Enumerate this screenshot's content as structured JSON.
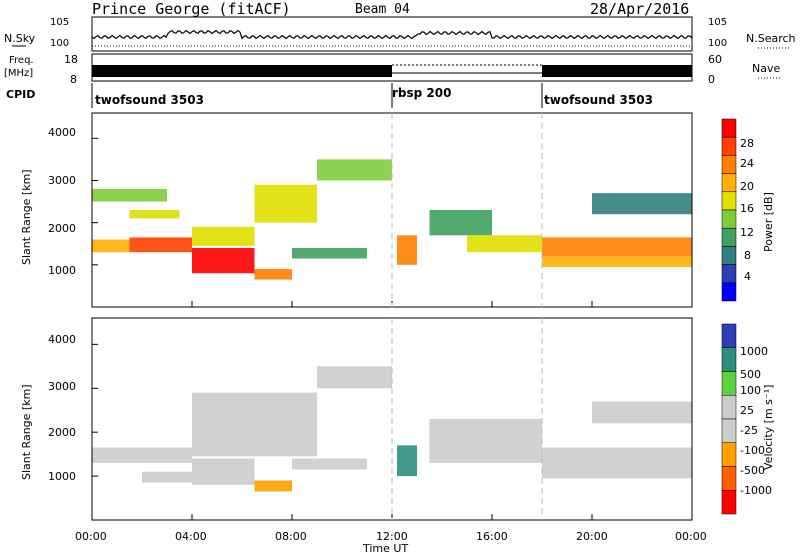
{
  "header": {
    "station": "Prince George (fitACF)",
    "beam": "Beam 04",
    "date": "28/Apr/2016"
  },
  "side_labels": {
    "nsky": "N.Sky",
    "freq_line1": "Freq.",
    "freq_line2": "[MHz]",
    "cpid": "CPID",
    "nsearch": "N.Search",
    "nave": "Nave"
  },
  "cpid_segments": [
    {
      "label": "twofsound 3503",
      "start_hour": 0
    },
    {
      "label": "rbsp 200",
      "start_hour": 12
    },
    {
      "label": "twofsound 3503",
      "start_hour": 18
    }
  ],
  "noise_panel": {
    "left_ticks": [
      "10^5",
      "10^0"
    ],
    "right_ticks": [
      "10^5",
      "10^0"
    ]
  },
  "freq_panel": {
    "left_ticks": [
      "18",
      "8"
    ],
    "right_ticks": [
      "60",
      "0"
    ]
  },
  "chart_data": [
    {
      "type": "heatmap",
      "title": "Power",
      "ylabel": "Slant Range [km]",
      "xlabel": "",
      "x_range": [
        0,
        24
      ],
      "ylim": [
        0,
        4600
      ],
      "yticks": [
        "4000",
        "3000",
        "2000",
        "1000"
      ],
      "colorbar": {
        "label": "Power [dB]",
        "range": [
          0,
          32
        ],
        "ticks": [
          "28",
          "24",
          "20",
          "16",
          "12",
          "8",
          "4"
        ],
        "colors": [
          "#0000ff",
          "#2e3fb5",
          "#2e7f7f",
          "#40a060",
          "#7fcc3f",
          "#dfdf00",
          "#ffb000",
          "#ff8000",
          "#ff4000",
          "#ff0000"
        ]
      },
      "bands": [
        {
          "t0": 0,
          "t1": 1.5,
          "r0": 1300,
          "r1": 1600,
          "value": 22
        },
        {
          "t0": 1.5,
          "t1": 4,
          "r0": 1300,
          "r1": 1650,
          "value": 26
        },
        {
          "t0": 4,
          "t1": 6.5,
          "r0": 1450,
          "r1": 1900,
          "value": 18
        },
        {
          "t0": 6.5,
          "t1": 9,
          "r0": 2000,
          "r1": 2900,
          "value": 16
        },
        {
          "t0": 9,
          "t1": 12,
          "r0": 3000,
          "r1": 3500,
          "value": 14
        },
        {
          "t0": 4,
          "t1": 6.5,
          "r0": 800,
          "r1": 1400,
          "value": 30
        },
        {
          "t0": 6.5,
          "t1": 8,
          "r0": 650,
          "r1": 900,
          "value": 24
        },
        {
          "t0": 8,
          "t1": 11,
          "r0": 1150,
          "r1": 1400,
          "value": 12
        },
        {
          "t0": 0,
          "t1": 3,
          "r0": 2500,
          "r1": 2800,
          "value": 14
        },
        {
          "t0": 1.5,
          "t1": 3.5,
          "r0": 2100,
          "r1": 2300,
          "value": 18
        },
        {
          "t0": 12.2,
          "t1": 13,
          "r0": 1000,
          "r1": 1700,
          "value": 24
        },
        {
          "t0": 13.5,
          "t1": 16,
          "r0": 1700,
          "r1": 2300,
          "value": 12
        },
        {
          "t0": 15,
          "t1": 18,
          "r0": 1300,
          "r1": 1700,
          "value": 18
        },
        {
          "t0": 18,
          "t1": 24,
          "r0": 1200,
          "r1": 1650,
          "value": 24
        },
        {
          "t0": 18,
          "t1": 24,
          "r0": 950,
          "r1": 1200,
          "value": 20
        },
        {
          "t0": 20,
          "t1": 24,
          "r0": 2200,
          "r1": 2700,
          "value": 8
        }
      ]
    },
    {
      "type": "heatmap",
      "title": "Velocity",
      "ylabel": "Slant Range [km]",
      "xlabel": "Time UT",
      "x_range": [
        0,
        24
      ],
      "xticks": [
        "00:00",
        "04:00",
        "08:00",
        "12:00",
        "16:00",
        "20:00",
        "00:00"
      ],
      "ylim": [
        0,
        4600
      ],
      "yticks": [
        "4000",
        "3000",
        "2000",
        "1000"
      ],
      "colorbar": {
        "label": "Velocity [m s^-1]",
        "range": [
          -1200,
          1200
        ],
        "ticks": [
          "1000",
          "500",
          "100",
          "25",
          "-25",
          "-100",
          "-500",
          "-1000"
        ],
        "colors": [
          "#ff0000",
          "#ff6000",
          "#ffa000",
          "#cccccc",
          "#cccccc",
          "#60d040",
          "#2e8f7f",
          "#2e3fb5"
        ]
      },
      "bands": [
        {
          "t0": 0,
          "t1": 4,
          "r0": 1300,
          "r1": 1650,
          "value": 0
        },
        {
          "t0": 4,
          "t1": 9,
          "r0": 1450,
          "r1": 2900,
          "value": 0
        },
        {
          "t0": 9,
          "t1": 12,
          "r0": 3000,
          "r1": 3500,
          "value": 0
        },
        {
          "t0": 4,
          "t1": 6.5,
          "r0": 800,
          "r1": 1400,
          "value": -200
        },
        {
          "t0": 6.5,
          "t1": 8,
          "r0": 650,
          "r1": 900,
          "value": -400
        },
        {
          "t0": 2,
          "t1": 4,
          "r0": 850,
          "r1": 1100,
          "value": -150
        },
        {
          "t0": 8,
          "t1": 11,
          "r0": 1150,
          "r1": 1400,
          "value": 0
        },
        {
          "t0": 12.2,
          "t1": 13,
          "r0": 1000,
          "r1": 1700,
          "value": 600
        },
        {
          "t0": 13.5,
          "t1": 18,
          "r0": 1300,
          "r1": 2300,
          "value": 0
        },
        {
          "t0": 18,
          "t1": 24,
          "r0": 950,
          "r1": 1650,
          "value": 0
        },
        {
          "t0": 20,
          "t1": 24,
          "r0": 2200,
          "r1": 2700,
          "value": 0
        }
      ]
    }
  ]
}
